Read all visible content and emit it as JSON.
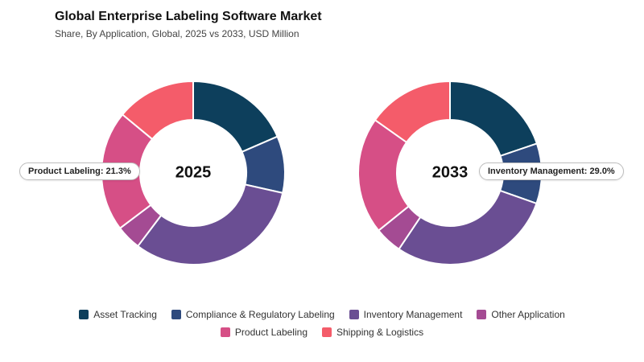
{
  "header": {
    "title": "Global Enterprise Labeling Software Market",
    "subtitle": "Share, By Application, Global, 2025 vs 2033, USD Million"
  },
  "colors": {
    "Asset Tracking": "#0d3f5c",
    "Compliance & Regulatory Labeling": "#2e4a7d",
    "Inventory Management": "#6a4e93",
    "Other Application": "#a44b93",
    "Product Labeling": "#d64f86",
    "Shipping & Logistics": "#f45c6a"
  },
  "chart_data": [
    {
      "type": "pie",
      "center_label": "2025",
      "categories": [
        "Asset Tracking",
        "Compliance & Regulatory Labeling",
        "Inventory Management",
        "Other Application",
        "Product Labeling",
        "Shipping & Logistics"
      ],
      "values": [
        18.5,
        10.0,
        31.8,
        4.4,
        21.3,
        14.0
      ],
      "callout": {
        "label": "Product Labeling: 21.3%",
        "category": "Product Labeling"
      }
    },
    {
      "type": "pie",
      "center_label": "2033",
      "categories": [
        "Asset Tracking",
        "Compliance & Regulatory Labeling",
        "Inventory Management",
        "Other Application",
        "Product Labeling",
        "Shipping & Logistics"
      ],
      "values": [
        19.8,
        10.6,
        29.0,
        4.8,
        20.6,
        15.2
      ],
      "callout": {
        "label": "Inventory Management: 29.0%",
        "category": "Inventory Management"
      }
    }
  ],
  "legend": {
    "items": [
      "Asset Tracking",
      "Compliance & Regulatory Labeling",
      "Inventory Management",
      "Other Application",
      "Product Labeling",
      "Shipping & Logistics"
    ]
  }
}
